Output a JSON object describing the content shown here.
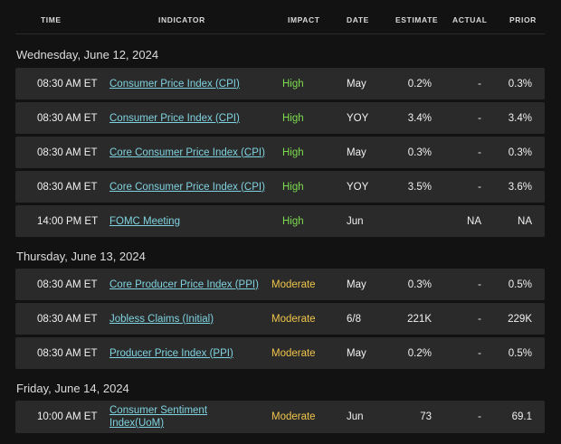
{
  "columns": [
    "TIME",
    "INDICATOR",
    "IMPACT",
    "DATE",
    "ESTIMATE",
    "ACTUAL",
    "PRIOR"
  ],
  "sections": [
    {
      "title": "Wednesday, June 12, 2024",
      "rows": [
        {
          "time": "08:30 AM ET",
          "indicator": "Consumer Price Index (CPI)",
          "impact": "High",
          "date": "May",
          "estimate": "0.2%",
          "actual": "-",
          "prior": "0.3%"
        },
        {
          "time": "08:30 AM ET",
          "indicator": "Consumer Price Index (CPI)",
          "impact": "High",
          "date": "YOY",
          "estimate": "3.4%",
          "actual": "-",
          "prior": "3.4%"
        },
        {
          "time": "08:30 AM ET",
          "indicator": "Core Consumer Price Index (CPI)",
          "impact": "High",
          "date": "May",
          "estimate": "0.3%",
          "actual": "-",
          "prior": "0.3%"
        },
        {
          "time": "08:30 AM ET",
          "indicator": "Core Consumer Price Index (CPI)",
          "impact": "High",
          "date": "YOY",
          "estimate": "3.5%",
          "actual": "-",
          "prior": "3.6%"
        },
        {
          "time": "14:00 PM ET",
          "indicator": "FOMC Meeting",
          "impact": "High",
          "date": "Jun",
          "estimate": "",
          "actual": "NA",
          "prior": "NA"
        }
      ]
    },
    {
      "title": "Thursday, June 13, 2024",
      "rows": [
        {
          "time": "08:30 AM ET",
          "indicator": "Core Producer Price Index (PPI)",
          "impact": "Moderate",
          "date": "May",
          "estimate": "0.3%",
          "actual": "-",
          "prior": "0.5%"
        },
        {
          "time": "08:30 AM ET",
          "indicator": "Jobless Claims (Initial)",
          "impact": "Moderate",
          "date": "6/8",
          "estimate": "221K",
          "actual": "-",
          "prior": "229K"
        },
        {
          "time": "08:30 AM ET",
          "indicator": "Producer Price Index (PPI)",
          "impact": "Moderate",
          "date": "May",
          "estimate": "0.2%",
          "actual": "-",
          "prior": "0.5%"
        }
      ]
    },
    {
      "title": "Friday, June 14, 2024",
      "rows": [
        {
          "time": "10:00 AM ET",
          "indicator_line1": "Consumer Sentiment",
          "indicator_line2": "Index(UoM)",
          "impact": "Moderate",
          "date": "Jun",
          "estimate": "73",
          "actual": "-",
          "prior": "69.1"
        }
      ]
    }
  ],
  "colors": {
    "high": "#7ddc4f",
    "moderate": "#f0c54b",
    "link": "#7fd3e0"
  }
}
